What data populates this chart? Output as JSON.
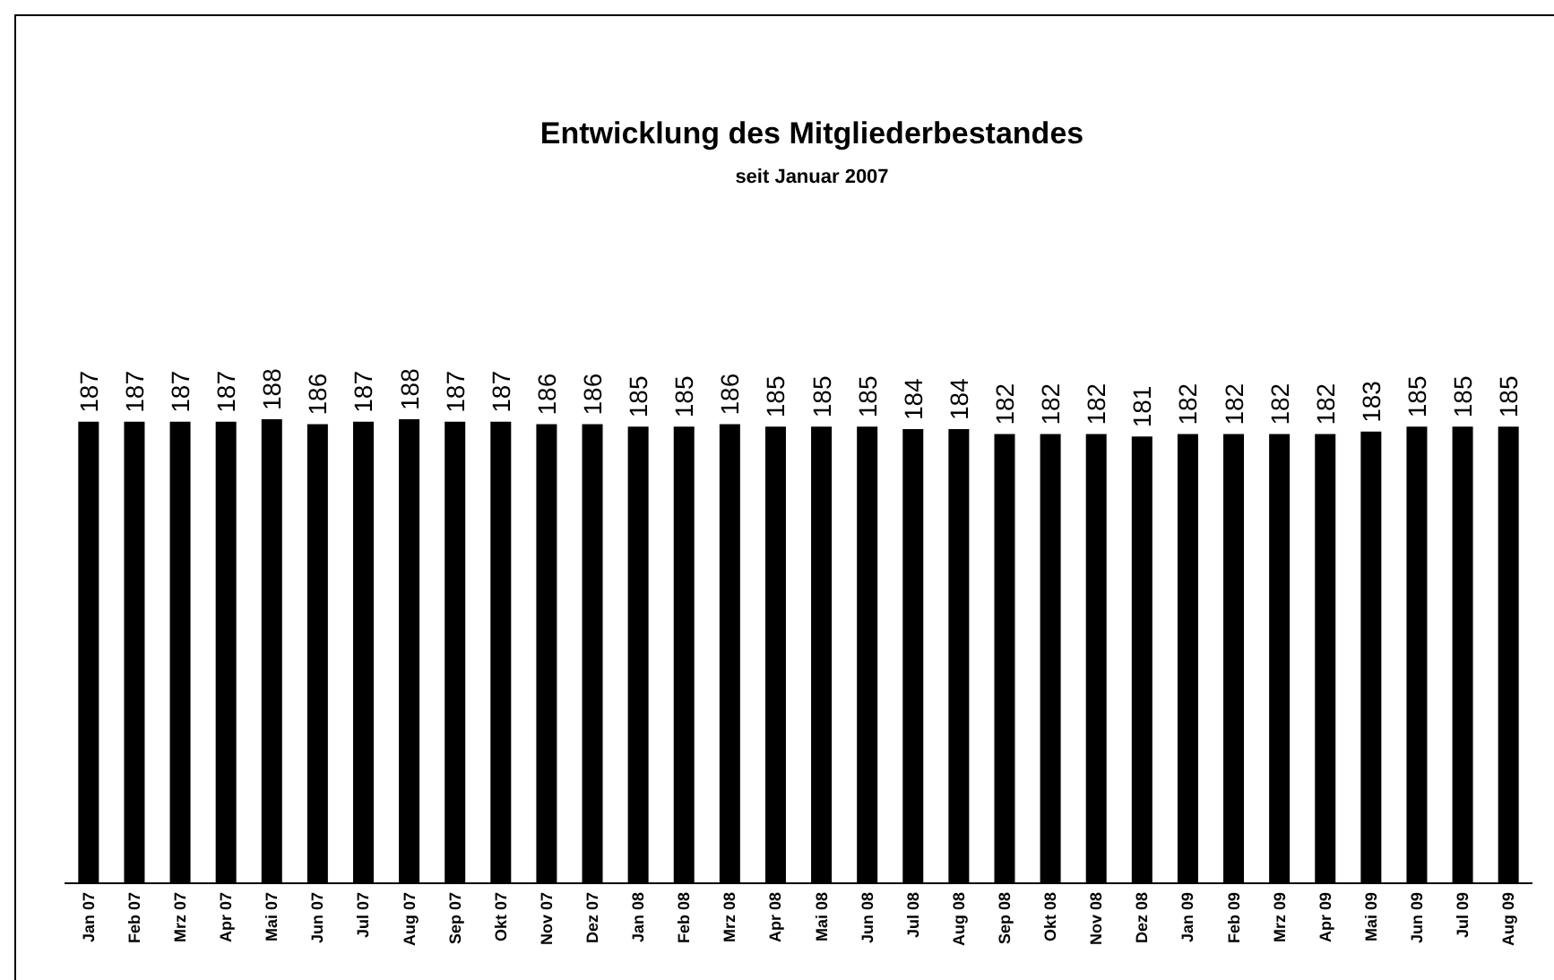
{
  "chart_data": {
    "type": "bar",
    "title": "Entwicklung des Mitgliederbestandes",
    "subtitle": "seit Januar 2007",
    "categories": [
      "Jan 07",
      "Feb 07",
      "Mrz 07",
      "Apr 07",
      "Mai 07",
      "Jun 07",
      "Jul 07",
      "Aug 07",
      "Sep 07",
      "Okt 07",
      "Nov 07",
      "Dez 07",
      "Jan 08",
      "Feb 08",
      "Mrz 08",
      "Apr 08",
      "Mai 08",
      "Jun 08",
      "Jul 08",
      "Aug 08",
      "Sep 08",
      "Okt 08",
      "Nov 08",
      "Dez 08",
      "Jan 09",
      "Feb 09",
      "Mrz 09",
      "Apr 09",
      "Mai 09",
      "Jun 09",
      "Jul 09",
      "Aug 09"
    ],
    "values": [
      187,
      187,
      187,
      187,
      188,
      186,
      187,
      188,
      187,
      187,
      186,
      186,
      185,
      185,
      186,
      185,
      185,
      185,
      184,
      184,
      182,
      182,
      182,
      181,
      182,
      182,
      182,
      182,
      183,
      185,
      185,
      185
    ],
    "color": "#000000",
    "data_labels": true,
    "tick_labels": "x"
  }
}
